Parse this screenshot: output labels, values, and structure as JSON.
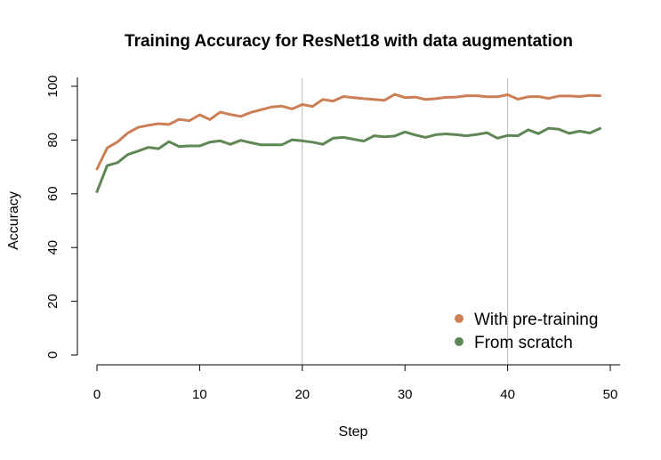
{
  "chart_data": {
    "type": "line",
    "title": "Training Accuracy for ResNet18 with data augmentation",
    "xlabel": "Step",
    "ylabel": "Accuracy",
    "xlim": [
      0,
      50
    ],
    "ylim": [
      0,
      100
    ],
    "x_ticks": [
      0,
      10,
      20,
      30,
      40,
      50
    ],
    "y_ticks": [
      0,
      20,
      40,
      60,
      80,
      100
    ],
    "vlines": [
      20,
      40
    ],
    "legend_position": "bottom-right",
    "series": [
      {
        "name": "With pre-training",
        "color": "#cc7f55",
        "x": [
          0,
          1,
          2,
          3,
          4,
          5,
          6,
          7,
          8,
          9,
          10,
          11,
          12,
          13,
          14,
          15,
          16,
          17,
          18,
          19,
          20,
          21,
          22,
          23,
          24,
          25,
          26,
          27,
          28,
          29,
          30,
          31,
          32,
          33,
          34,
          35,
          36,
          37,
          38,
          39,
          40,
          41,
          42,
          43,
          44,
          45,
          46,
          47,
          48,
          49
        ],
        "values": [
          69.2,
          77.1,
          79.3,
          82.6,
          84.7,
          85.5,
          86.1,
          85.8,
          87.7,
          87.2,
          89.4,
          87.6,
          90.4,
          89.5,
          88.8,
          90.3,
          91.3,
          92.3,
          92.6,
          91.6,
          93.2,
          92.5,
          95.1,
          94.5,
          96.2,
          95.8,
          95.4,
          95.1,
          94.8,
          97.0,
          95.8,
          96.0,
          95.1,
          95.4,
          95.9,
          96.0,
          96.5,
          96.5,
          96.1,
          96.1,
          96.9,
          95.2,
          96.1,
          96.2,
          95.5,
          96.4,
          96.4,
          96.2,
          96.6,
          96.5
        ]
      },
      {
        "name": "From scratch",
        "color": "#5f8755",
        "x": [
          0,
          1,
          2,
          3,
          4,
          5,
          6,
          7,
          8,
          9,
          10,
          11,
          12,
          13,
          14,
          15,
          16,
          17,
          18,
          19,
          20,
          21,
          22,
          23,
          24,
          25,
          26,
          27,
          28,
          29,
          30,
          31,
          32,
          33,
          34,
          35,
          36,
          37,
          38,
          39,
          40,
          41,
          42,
          43,
          44,
          45,
          46,
          47,
          48,
          49
        ],
        "values": [
          60.8,
          70.5,
          71.6,
          74.6,
          75.9,
          77.3,
          76.8,
          79.4,
          77.6,
          77.8,
          77.8,
          79.2,
          79.7,
          78.4,
          79.9,
          79.0,
          78.2,
          78.2,
          78.2,
          80.1,
          79.7,
          79.2,
          78.4,
          80.7,
          81.0,
          80.3,
          79.6,
          81.6,
          81.2,
          81.5,
          83.0,
          81.9,
          81.0,
          82.0,
          82.3,
          82.0,
          81.6,
          82.1,
          82.7,
          80.7,
          81.7,
          81.6,
          83.8,
          82.4,
          84.4,
          84.0,
          82.5,
          83.3,
          82.6,
          84.3
        ]
      }
    ]
  }
}
